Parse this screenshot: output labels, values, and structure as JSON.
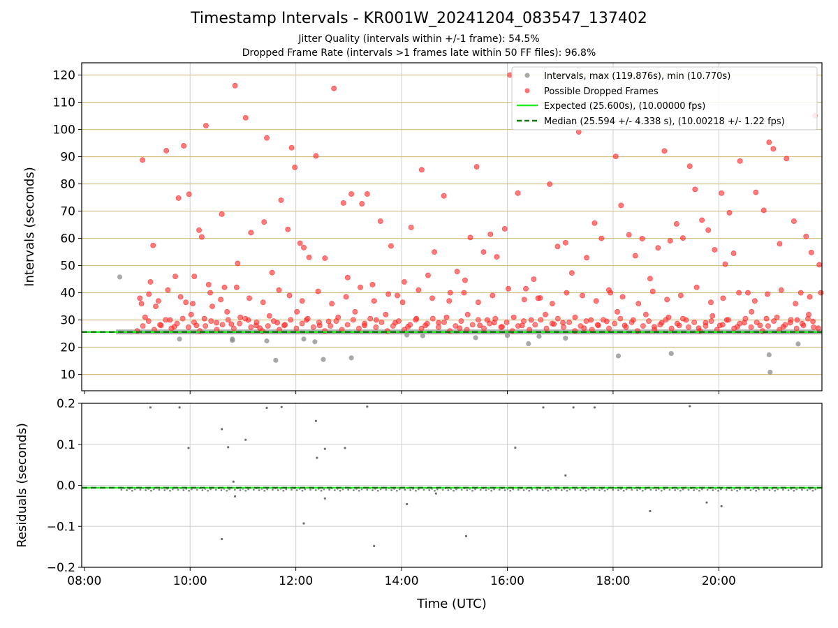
{
  "title": "Timestamp Intervals - KR001W_20241204_083547_137402",
  "subtitle1": "Jitter Quality (intervals within +/-1 frame): 54.5%",
  "subtitle2": "Dropped Frame Rate (intervals >1 frames late within 50 FF files): 96.8%",
  "colors": {
    "intervals": "#8c8c8c",
    "dropped": "#ff3333",
    "expected": "#22ee22",
    "median": "#117711",
    "hgrid": "#d4be7f",
    "vgrid": "#cfcfcf",
    "residuals": "#555555"
  },
  "chart_data": [
    {
      "type": "scatter",
      "ylabel": "Intervals (seconds)",
      "xlim": [
        7.95,
        21.95
      ],
      "ylim": [
        4,
        124.5
      ],
      "yticks": [
        10,
        20,
        30,
        40,
        50,
        60,
        70,
        80,
        90,
        100,
        110,
        120
      ],
      "ytick_labels": [
        "10",
        "20",
        "30",
        "40",
        "50",
        "60",
        "70",
        "80",
        "90",
        "100",
        "110",
        "120"
      ],
      "xticks": [
        8,
        10,
        12,
        14,
        16,
        18,
        20
      ],
      "grid": "horizontal gold lines, vertical gray lines",
      "legend_position": "top-right",
      "legend": [
        "Intervals, max (119.876s), min (10.770s)",
        "Possible Dropped Frames",
        "Expected (25.600s), (10.00000 fps)",
        "Median (25.594 +/- 4.338 s), (10.00218 +/- 1.22 fps)"
      ],
      "expected_value": 25.6,
      "median_value": 25.594,
      "baseline_x_range": [
        8.6,
        21.95
      ],
      "series": [
        {
          "name": "Intervals, max (119.876s), min (10.770s)",
          "x": [
            8.67,
            9.8,
            10.8,
            10.8,
            11.45,
            11.62,
            12.15,
            12.36,
            12.52,
            13.05,
            14.1,
            14.4,
            15.4,
            16.0,
            16.4,
            16.6,
            17.1,
            18.1,
            19.1,
            20.95,
            20.97,
            21.5
          ],
          "y": [
            45.8,
            23.0,
            22.5,
            23.0,
            22.3,
            15.2,
            23.0,
            22.0,
            15.5,
            16.1,
            24.5,
            24.2,
            23.5,
            24.3,
            21.3,
            24.0,
            23.3,
            16.8,
            17.7,
            17.2,
            10.8,
            21.2
          ]
        },
        {
          "name": "Possible Dropped Frames",
          "x": [
            9.05,
            9.1,
            9.25,
            9.3,
            9.55,
            9.72,
            9.78,
            9.88,
            9.92,
            9.98,
            10.08,
            10.17,
            10.22,
            10.3,
            10.35,
            10.6,
            10.65,
            10.85,
            10.9,
            11.05,
            11.15,
            11.4,
            11.45,
            11.55,
            11.72,
            11.85,
            11.92,
            11.98,
            12.08,
            12.15,
            12.25,
            12.38,
            12.55,
            12.72,
            12.9,
            12.98,
            13.05,
            13.25,
            13.35,
            13.45,
            13.6,
            13.8,
            13.92,
            14.05,
            14.18,
            14.38,
            14.5,
            14.62,
            14.8,
            14.92,
            15.05,
            15.2,
            15.3,
            15.42,
            15.55,
            15.68,
            15.8,
            15.95,
            16.05,
            16.2,
            16.35,
            16.5,
            16.62,
            16.8,
            16.95,
            17.1,
            17.22,
            17.35,
            17.5,
            17.65,
            17.78,
            17.95,
            18.05,
            18.15,
            18.3,
            18.42,
            18.55,
            18.7,
            18.85,
            18.97,
            19.08,
            19.2,
            19.32,
            19.45,
            19.55,
            19.68,
            19.8,
            19.92,
            20.05,
            20.12,
            20.2,
            20.28,
            20.4,
            20.55,
            20.7,
            20.85,
            20.95,
            21.03,
            21.15,
            21.28,
            21.42,
            21.55,
            21.65,
            21.75,
            21.82,
            21.9,
            9.15,
            9.35,
            9.45,
            9.62,
            9.7,
            10.02,
            10.12,
            10.27,
            10.42,
            10.5,
            10.7,
            10.78,
            10.95,
            11.1,
            11.25,
            11.32,
            11.5,
            11.65,
            11.78,
            12.02,
            12.2,
            12.45,
            12.62,
            12.8,
            13.12,
            13.3,
            13.52,
            13.7,
            13.88,
            14.12,
            14.28,
            14.45,
            14.7,
            14.85,
            15.1,
            15.25,
            15.48,
            15.62,
            15.75,
            15.9,
            16.12,
            16.28,
            16.45,
            16.72,
            16.88,
            17.05,
            17.28,
            17.45,
            17.58,
            17.72,
            17.88,
            18.08,
            18.22,
            18.38,
            18.62,
            18.78,
            18.92,
            19.05,
            19.25,
            19.38,
            19.62,
            19.75,
            19.88,
            20.02,
            20.15,
            20.35,
            20.48,
            20.62,
            20.78,
            20.9,
            21.1,
            21.22,
            21.35,
            21.48,
            21.6,
            21.7,
            21.78,
            21.88,
            9.08,
            9.22,
            9.4,
            9.58,
            9.82,
            10.05,
            10.38,
            10.58,
            10.88,
            11.12,
            11.38,
            11.68,
            11.88,
            12.12,
            12.42,
            12.68,
            12.95,
            13.22,
            13.48,
            13.75,
            14.02,
            14.32,
            14.58,
            14.9,
            15.18,
            15.45,
            15.72,
            16.02,
            16.32,
            16.58,
            16.85,
            17.12,
            17.42,
            17.68,
            17.92,
            18.18,
            18.48,
            18.75,
            19.02,
            19.28,
            19.58,
            19.85,
            20.08,
            20.38,
            20.68,
            20.92,
            21.18,
            21.45,
            21.72,
            21.93
          ],
          "y": [
            38.0,
            88.8,
            44.0,
            57.4,
            92.2,
            46.0,
            74.8,
            94.0,
            36.5,
            76.2,
            46.0,
            63.0,
            60.5,
            101.4,
            43.0,
            68.9,
            42.0,
            116.1,
            50.8,
            104.3,
            62.1,
            66.0,
            96.9,
            47.4,
            74.0,
            63.3,
            93.3,
            86.1,
            58.2,
            56.6,
            53.0,
            90.3,
            52.7,
            115.1,
            73.0,
            45.6,
            76.3,
            72.7,
            76.3,
            43.0,
            66.3,
            57.2,
            39.0,
            44.0,
            64.0,
            85.2,
            46.4,
            55.0,
            75.6,
            40.0,
            47.8,
            44.6,
            60.3,
            86.3,
            55.0,
            61.5,
            53.2,
            63.5,
            120.0,
            76.6,
            41.5,
            45.0,
            38.1,
            79.9,
            57.0,
            58.4,
            47.3,
            99.1,
            52.9,
            65.6,
            60.0,
            40.0,
            90.1,
            72.1,
            61.3,
            53.6,
            59.9,
            45.2,
            56.5,
            92.1,
            59.1,
            65.3,
            60.1,
            86.5,
            78.0,
            66.7,
            63.0,
            55.8,
            76.6,
            50.5,
            69.4,
            54.5,
            88.4,
            40.0,
            76.9,
            70.3,
            95.3,
            92.9,
            58.0,
            89.3,
            66.3,
            40.0,
            60.7,
            54.8,
            105.1,
            50.3,
            31.0,
            35.0,
            28.0,
            30.0,
            27.5,
            32.0,
            28.0,
            30.5,
            35.0,
            29.0,
            33.0,
            28.5,
            31.0,
            30.0,
            28.0,
            27.0,
            31.5,
            29.0,
            28.0,
            33.0,
            30.0,
            28.0,
            29.5,
            31.0,
            33.0,
            28.0,
            30.0,
            32.0,
            29.0,
            27.5,
            30.5,
            28.0,
            29.0,
            31.0,
            27.0,
            32.0,
            28.0,
            30.0,
            29.0,
            27.5,
            31.0,
            28.0,
            30.0,
            32.0,
            28.5,
            29.0,
            31.0,
            27.0,
            30.0,
            28.0,
            29.5,
            33.0,
            28.0,
            30.0,
            32.0,
            27.5,
            29.0,
            31.0,
            28.0,
            30.0,
            27.0,
            29.0,
            31.5,
            28.0,
            30.0,
            27.5,
            29.0,
            33.0,
            28.0,
            30.5,
            31.0,
            27.5,
            29.0,
            30.0,
            28.0,
            32.0,
            29.5,
            27.0,
            36.0,
            39.5,
            37.0,
            41.0,
            38.5,
            36.0,
            40.0,
            37.5,
            42.0,
            38.0,
            36.5,
            41.0,
            39.0,
            37.0,
            40.5,
            36.0,
            38.5,
            42.0,
            37.0,
            39.5,
            36.5,
            41.0,
            38.0,
            37.0,
            40.0,
            36.5,
            39.0,
            41.5,
            37.5,
            38.0,
            36.0,
            40.0,
            39.0,
            37.0,
            41.0,
            38.5,
            36.0,
            40.5,
            37.5,
            39.0,
            42.0,
            36.5,
            38.0,
            40.0,
            37.0,
            39.5,
            41.0,
            36.0,
            38.5,
            40.0
          ]
        }
      ]
    },
    {
      "type": "scatter",
      "xlabel": "Time (UTC)",
      "ylabel": "Residuals (seconds)",
      "xlim": [
        7.95,
        21.95
      ],
      "ylim": [
        -0.2,
        0.2
      ],
      "yticks": [
        -0.2,
        -0.1,
        0.0,
        0.1,
        0.2
      ],
      "ytick_labels": [
        "−0.2",
        "−0.1",
        "0.0",
        "0.1",
        "0.2"
      ],
      "xticks": [
        8,
        10,
        12,
        14,
        16,
        18,
        20
      ],
      "xtick_labels": [
        "08:00",
        "10:00",
        "12:00",
        "14:00",
        "16:00",
        "18:00",
        "20:00"
      ],
      "grid": "on",
      "baseline_value": -0.006,
      "series": [
        {
          "name": "",
          "x": [
            9.25,
            9.8,
            9.97,
            10.6,
            10.72,
            10.82,
            10.85,
            11.05,
            11.45,
            11.73,
            12.15,
            12.38,
            12.55,
            12.93,
            13.35,
            13.48,
            14.1,
            14.65,
            15.22,
            16.15,
            16.68,
            17.1,
            17.25,
            17.65,
            18.7,
            19.45,
            19.77,
            20.05,
            10.6,
            12.55,
            12.4
          ],
          "y": [
            0.19,
            0.19,
            0.091,
            0.137,
            0.093,
            0.009,
            -0.027,
            0.111,
            0.189,
            0.191,
            -0.093,
            0.157,
            0.089,
            0.091,
            0.192,
            -0.148,
            -0.046,
            -0.02,
            -0.124,
            0.092,
            0.19,
            0.024,
            0.19,
            0.19,
            -0.063,
            0.193,
            -0.042,
            -0.051,
            -0.131,
            -0.032,
            0.067
          ]
        }
      ]
    }
  ]
}
